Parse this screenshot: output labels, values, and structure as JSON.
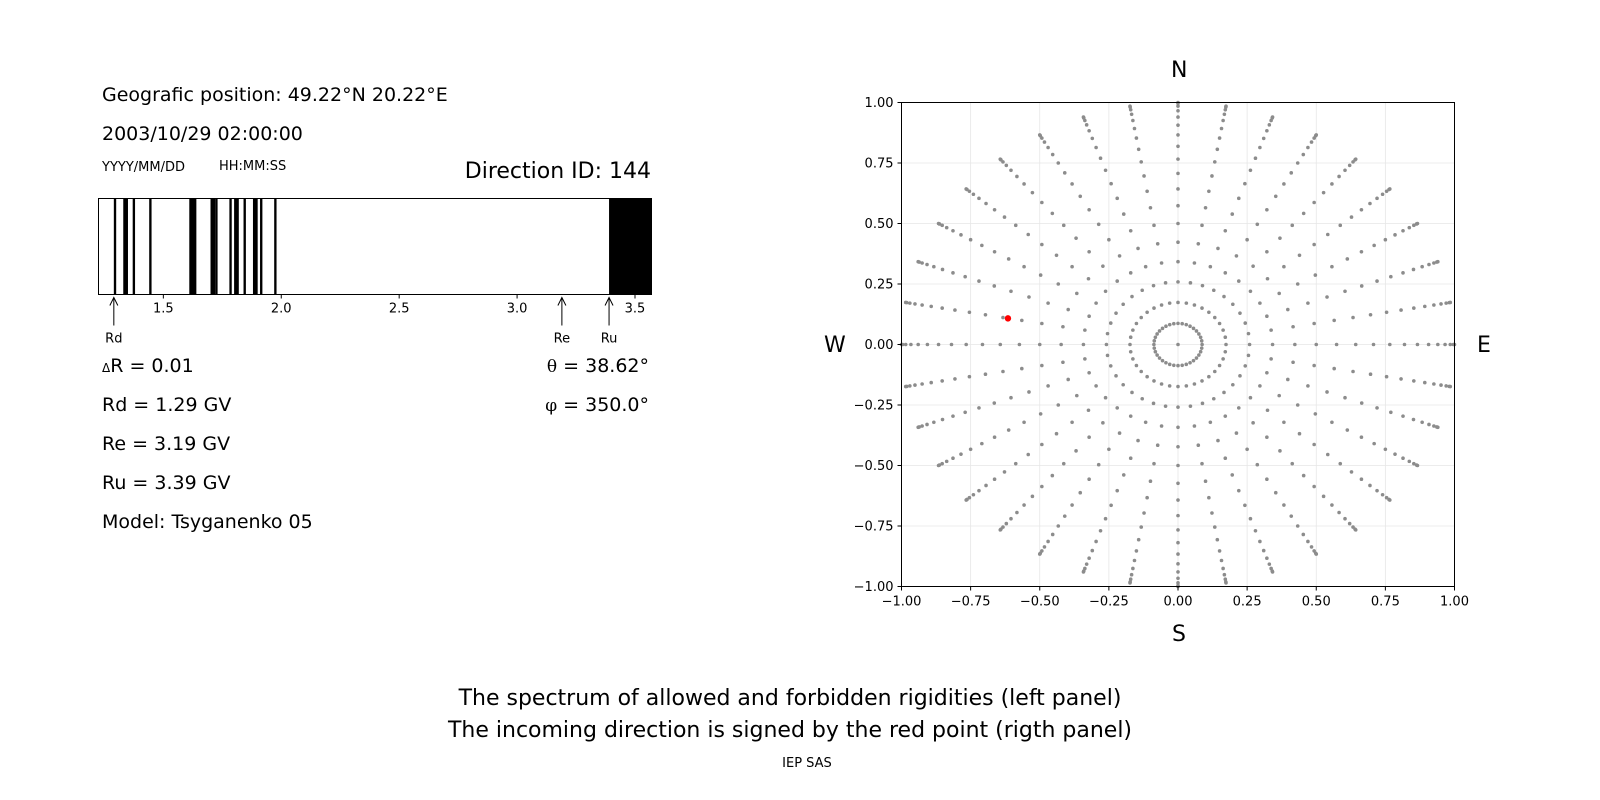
{
  "header": {
    "position": "Geografic position: 49.22°N 20.22°E",
    "datetime": "2003/10/29 02:00:00",
    "date_format": "YYYY/MM/DD",
    "time_format": "HH:MM:SS",
    "direction_id": "Direction ID: 144"
  },
  "params": {
    "delta_r": "R = 0.01",
    "rd": "Rd = 1.29 GV",
    "re": "Re = 3.19 GV",
    "ru": "Ru = 3.39 GV",
    "model": "Model: Tsyganenko 05",
    "theta": "= 38.62°",
    "phi": "= 350.0°",
    "delta_symbol": "Δ",
    "theta_symbol": "θ",
    "phi_symbol": "φ"
  },
  "compass": {
    "n": "N",
    "s": "S",
    "w": "W",
    "e": "E"
  },
  "footer": {
    "line1": "The spectrum of allowed and forbidden rigidities (left panel)",
    "line2": "The incoming direction is signed by the red point (rigth panel)",
    "credit": "IEP SAS"
  },
  "colors": {
    "forbidden": "#000000",
    "grid_point": "#8c8c8c",
    "direction_point": "#ff0000"
  },
  "chart_data": [
    {
      "type": "bar",
      "title": "",
      "xlim": [
        1.225,
        3.57
      ],
      "xticks": [
        1.5,
        2.0,
        2.5,
        3.0,
        3.5
      ],
      "xtick_labels": [
        "1.5",
        "2.0",
        "2.5",
        "3.0",
        "3.5"
      ],
      "forbidden_bands": [
        [
          1.29,
          1.3
        ],
        [
          1.33,
          1.35
        ],
        [
          1.37,
          1.38
        ],
        [
          1.44,
          1.45
        ],
        [
          1.61,
          1.64
        ],
        [
          1.7,
          1.72
        ],
        [
          1.72,
          1.73
        ],
        [
          1.78,
          1.79
        ],
        [
          1.8,
          1.82
        ],
        [
          1.84,
          1.85
        ],
        [
          1.88,
          1.9
        ],
        [
          1.91,
          1.92
        ],
        [
          1.97,
          1.98
        ],
        [
          3.39,
          3.57
        ]
      ],
      "markers": [
        {
          "label": "Rd",
          "value": 1.29
        },
        {
          "label": "Re",
          "value": 3.19
        },
        {
          "label": "Ru",
          "value": 3.39
        }
      ]
    },
    {
      "type": "scatter",
      "xlim": [
        -1.0,
        1.0
      ],
      "ylim": [
        -1.0,
        1.0
      ],
      "xticks": [
        -1.0,
        -0.75,
        -0.5,
        -0.25,
        0.0,
        0.25,
        0.5,
        0.75,
        1.0
      ],
      "xtick_labels": [
        "−1.00",
        "−0.75",
        "−0.50",
        "−0.25",
        "0.00",
        "0.25",
        "0.50",
        "0.75",
        "1.00"
      ],
      "yticks": [
        -1.0,
        -0.75,
        -0.5,
        -0.25,
        0.0,
        0.25,
        0.5,
        0.75,
        1.0
      ],
      "ytick_labels": [
        "−1.00",
        "−0.75",
        "−0.50",
        "−0.25",
        "0.00",
        "0.25",
        "0.50",
        "0.75",
        "1.00"
      ],
      "grid": true,
      "zenith_angles_deg": [
        0,
        5,
        10,
        15,
        20,
        25,
        30,
        35,
        40,
        45,
        50,
        55,
        60,
        65,
        70,
        75,
        80,
        85,
        90
      ],
      "azimuth_step_deg": 10,
      "highlight": {
        "theta_deg": 38.62,
        "phi_deg": 350.0,
        "x": -0.615,
        "y": 0.108
      }
    }
  ]
}
